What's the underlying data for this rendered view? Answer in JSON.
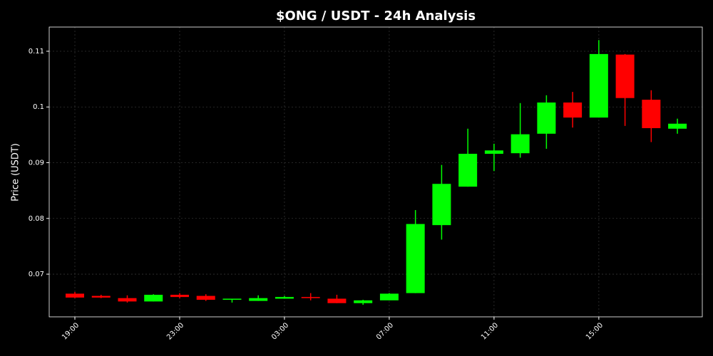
{
  "chart_data": {
    "type": "candlestick",
    "title": "$ONG / USDT - 24h Analysis",
    "y_label": "Price (USDT)",
    "categories": [
      "19:00",
      null,
      null,
      null,
      "23:00",
      null,
      null,
      null,
      "03:00",
      null,
      null,
      null,
      "07:00",
      null,
      null,
      null,
      "11:00",
      null,
      null,
      null,
      "15:00",
      null,
      null,
      null
    ],
    "open": [
      0.0665,
      0.0661,
      0.0657,
      0.0651,
      0.0663,
      0.0661,
      0.0654,
      0.0652,
      0.0656,
      0.0659,
      0.0656,
      0.0648,
      0.0653,
      0.0666,
      0.0788,
      0.0857,
      0.0916,
      0.0917,
      0.0952,
      0.1008,
      0.0981,
      0.1094,
      0.1013,
      0.0961
    ],
    "high": [
      0.0668,
      0.0663,
      0.0662,
      0.0664,
      0.0666,
      0.0664,
      0.0656,
      0.0662,
      0.0661,
      0.0666,
      0.0663,
      0.0654,
      0.0666,
      0.0815,
      0.0896,
      0.0961,
      0.0934,
      0.1007,
      0.1021,
      0.1027,
      0.112,
      0.1095,
      0.103,
      0.0979
    ],
    "low": [
      0.0657,
      0.0657,
      0.0649,
      0.0651,
      0.0657,
      0.0652,
      0.0649,
      0.0652,
      0.0656,
      0.0653,
      0.0648,
      0.0645,
      0.0653,
      0.0666,
      0.0762,
      0.0857,
      0.0885,
      0.0909,
      0.0925,
      0.0963,
      0.0981,
      0.0966,
      0.0937,
      0.0952
    ],
    "close": [
      0.0658,
      0.0658,
      0.0651,
      0.0663,
      0.0659,
      0.0654,
      0.0656,
      0.0657,
      0.0659,
      0.0657,
      0.0648,
      0.0653,
      0.0665,
      0.079,
      0.0862,
      0.0916,
      0.0922,
      0.0951,
      0.1008,
      0.0981,
      0.1095,
      0.1016,
      0.0962,
      0.097
    ],
    "up_color": "#00ff00",
    "down_color": "#ff0000",
    "ylim": [
      0.06234,
      0.11434
    ],
    "yticks": [
      0.07,
      0.08,
      0.09,
      0.1,
      0.11
    ],
    "grid": true
  }
}
